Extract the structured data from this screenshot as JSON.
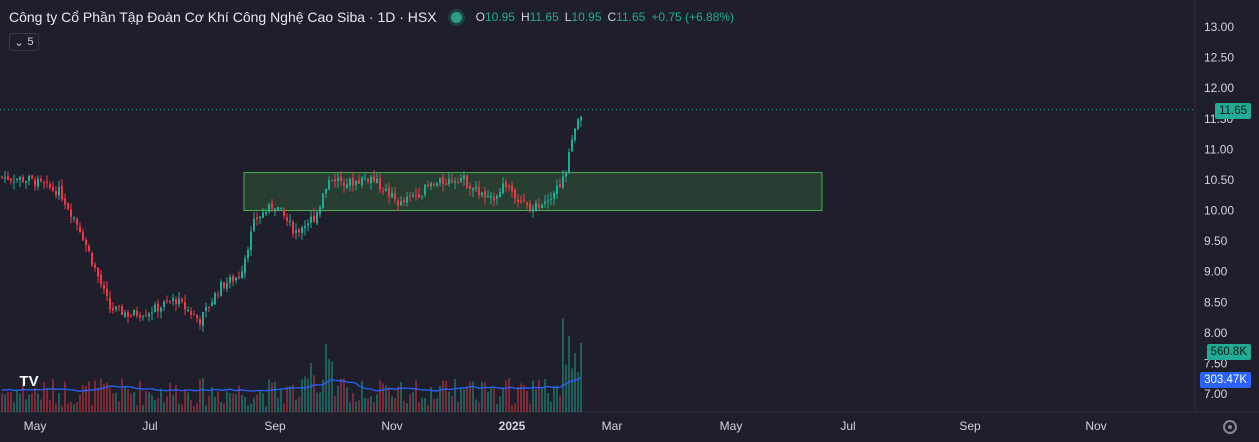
{
  "header": {
    "title": "Công ty Cổ Phần Tập Đoàn Cơ Khí Công Nghệ Cao Siba · 1D · HSX",
    "o_label": "O",
    "o": "10.95",
    "h_label": "H",
    "h": "11.65",
    "l_label": "L",
    "l": "10.95",
    "c_label": "C",
    "c": "11.65",
    "change": "+0.75 (+6.88%)"
  },
  "indicator_toggle": {
    "count": "5"
  },
  "price_tags": {
    "last_price": "11.65",
    "volume": "560.8K",
    "volume_ma": "303.47K"
  },
  "colors": {
    "background": "#1e1f2b",
    "up": "#22ab94",
    "down": "#f23645",
    "volume_ma": "#2962ff",
    "box_fill": "#2b4a34",
    "box_border": "#4caf50",
    "last_price_line": "#22ab94"
  },
  "icons": {
    "logo": "tradingview-logo-icon",
    "settings": "settings-gear-icon",
    "collapse": "chevron-down-icon"
  },
  "chart_data": {
    "type": "candlestick",
    "timeframe": "1D",
    "exchange": "HSX",
    "ylim": [
      6.9,
      13.2
    ],
    "y_ticks": [
      "13.00",
      "12.50",
      "12.00",
      "11.50",
      "11.00",
      "10.50",
      "10.00",
      "9.50",
      "9.00",
      "8.50",
      "8.00",
      "7.50",
      "7.00"
    ],
    "x_ticks": [
      "May",
      "Jul",
      "Sep",
      "Nov",
      "2025",
      "Mar",
      "May",
      "Jul",
      "Sep",
      "Nov"
    ],
    "last_price": 11.65,
    "price_series": [
      [
        "Apr",
        10.55
      ],
      [
        "May",
        10.4
      ],
      [
        "Jun",
        8.3
      ],
      [
        "Jul",
        8.45
      ],
      [
        "Aug",
        8.25
      ],
      [
        "Aug-mid",
        8.9
      ],
      [
        "Aug-late",
        9.9
      ],
      [
        "Sep",
        10.1
      ],
      [
        "Sep-late",
        9.6
      ],
      [
        "Oct",
        10.6
      ],
      [
        "Nov",
        10.15
      ],
      [
        "Dec",
        10.45
      ],
      [
        "2025",
        10.2
      ],
      [
        "Jan",
        10.05
      ],
      [
        "Feb-early",
        10.9
      ],
      [
        "Feb",
        11.65
      ]
    ],
    "rectangle": {
      "from": "Sep",
      "to": "Jun",
      "price_low": 10.0,
      "price_high": 10.62
    },
    "volume": {
      "last": "560.8K",
      "ma": "303.47K"
    }
  }
}
